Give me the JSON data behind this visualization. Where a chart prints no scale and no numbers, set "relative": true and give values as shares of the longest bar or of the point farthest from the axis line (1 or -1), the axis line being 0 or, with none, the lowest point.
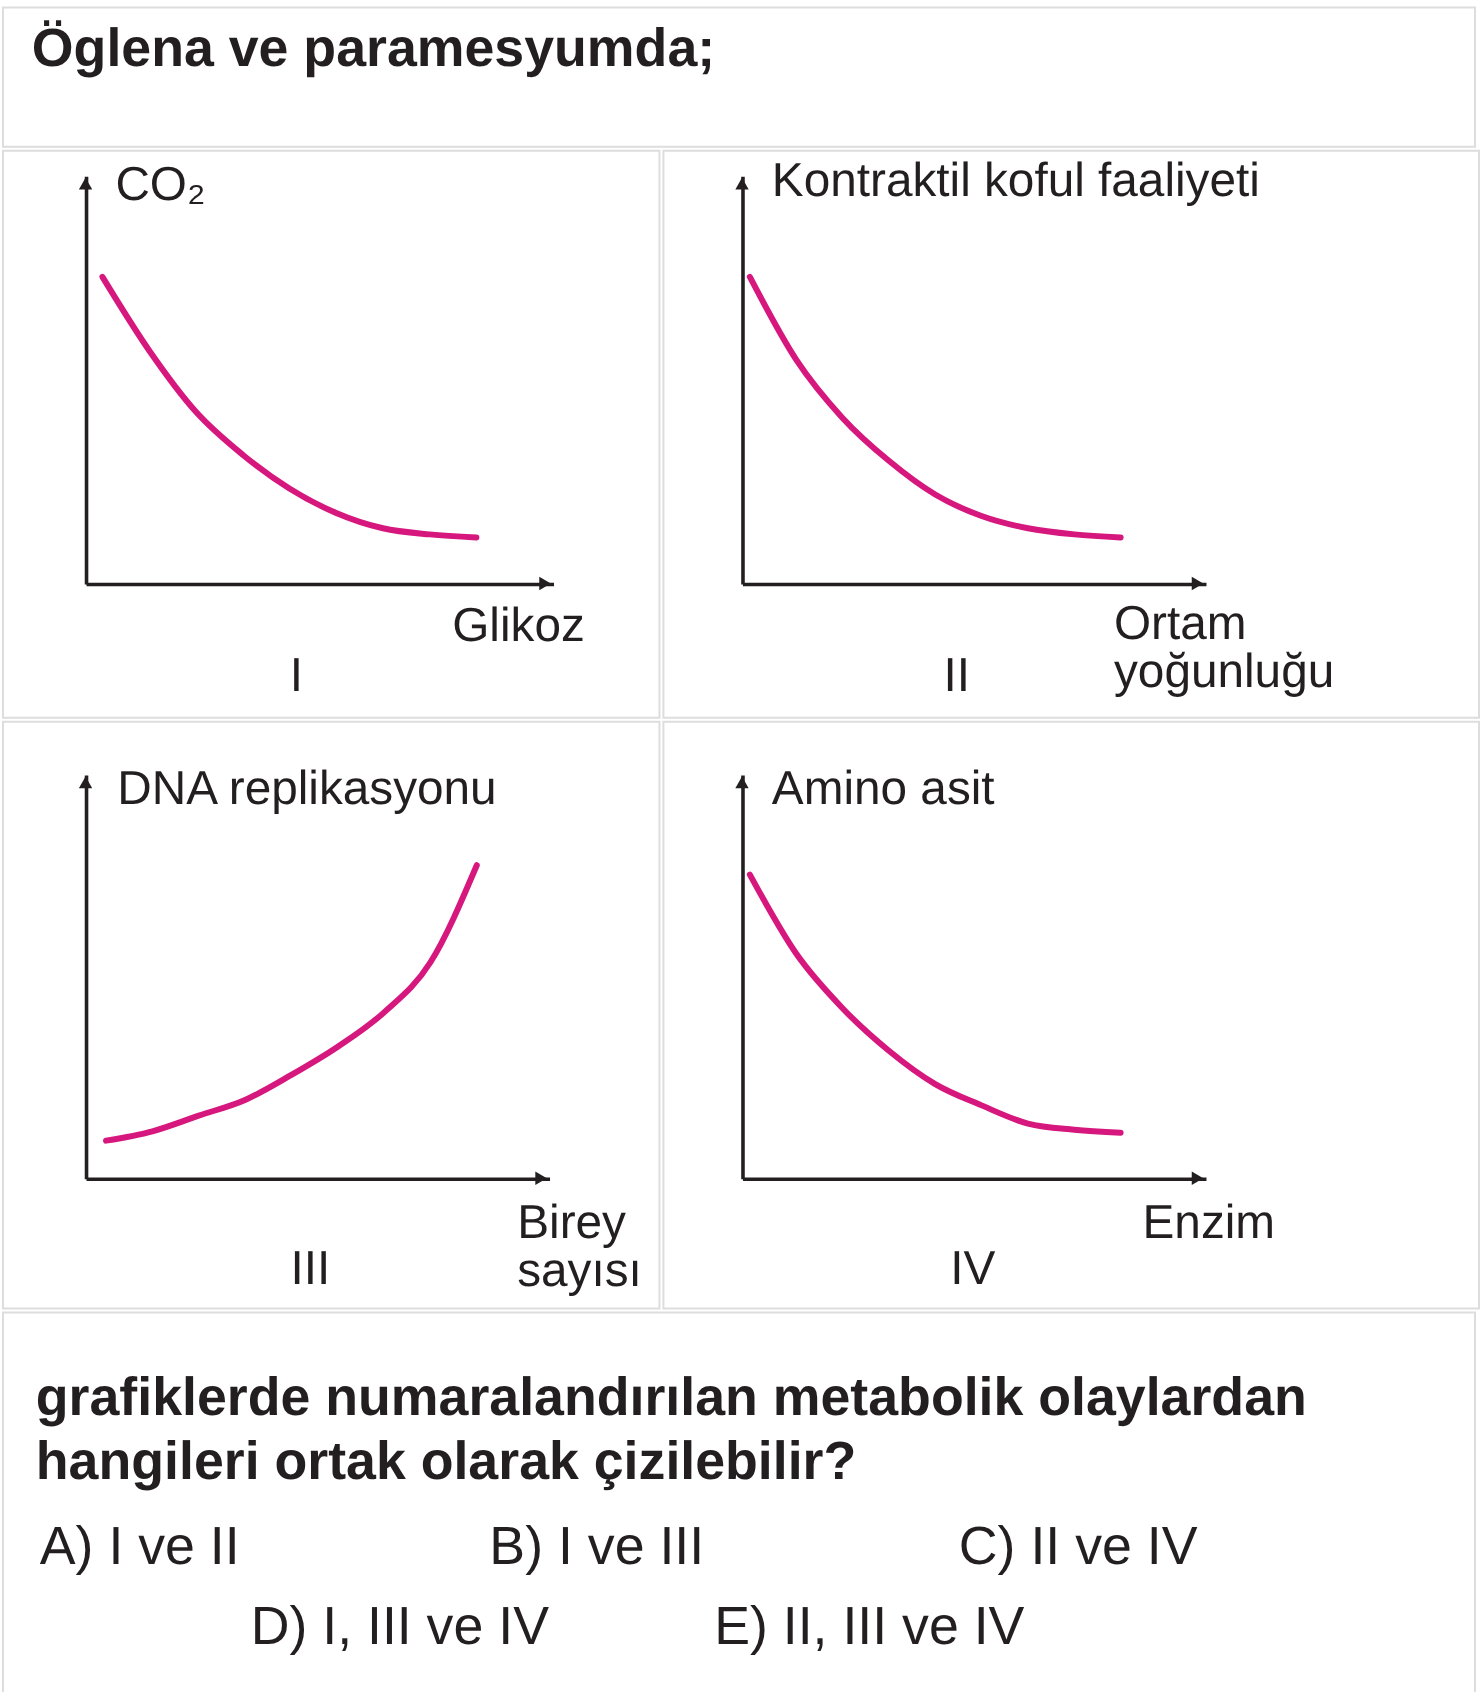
{
  "chart_data": [
    {
      "type": "other",
      "title": "Öglena ve paramesyumda;"
    },
    {
      "type": "line",
      "title": "I",
      "xlabel": "Glikoz",
      "ylabel": "CO₂",
      "relative": true,
      "categories": [
        null,
        null,
        null,
        null,
        null,
        null,
        null,
        null,
        null
      ],
      "series": [
        {
          "color": "#d6187e",
          "values": [
            1,
            0.76,
            0.56,
            0.42,
            0.31,
            0.23,
            0.18,
            0.16,
            0.15
          ]
        }
      ]
    },
    {
      "type": "line",
      "title": "II",
      "xlabel": "Ortam yoğunluğu",
      "ylabel": "Kontraktil koful faaliyeti",
      "relative": true,
      "categories": [
        null,
        null,
        null,
        null,
        null,
        null,
        null,
        null,
        null
      ],
      "series": [
        {
          "color": "#d6187e",
          "values": [
            1,
            0.73,
            0.54,
            0.4,
            0.29,
            0.22,
            0.18,
            0.16,
            0.15
          ]
        }
      ]
    },
    {
      "type": "line",
      "title": "III",
      "xlabel": "Birey sayısı",
      "ylabel": "DNA replikasyonu",
      "relative": true,
      "categories": [
        null,
        null,
        null,
        null,
        null,
        null,
        null,
        null,
        null
      ],
      "series": [
        {
          "color": "#d6187e",
          "values": [
            0.12,
            0.15,
            0.2,
            0.25,
            0.33,
            0.42,
            0.53,
            0.69,
            1
          ]
        }
      ]
    },
    {
      "type": "line",
      "title": "IV",
      "xlabel": "Enzim",
      "ylabel": "Amino asit",
      "relative": true,
      "categories": [
        null,
        null,
        null,
        null,
        null,
        null,
        null,
        null,
        null
      ],
      "series": [
        {
          "color": "#d6187e",
          "values": [
            1,
            0.74,
            0.56,
            0.42,
            0.31,
            0.24,
            0.18,
            0.16,
            0.15
          ]
        }
      ]
    },
    {
      "type": "other",
      "title": "grafiklerde numaralandırılan metabolik olaylardan hangileri ortak olarak çizilebilir?",
      "annotations": [
        "A) I ve II",
        "B) I ve III",
        "C) II ve IV",
        "D) I, III ve IV",
        "E) II, III ve IV"
      ]
    }
  ]
}
